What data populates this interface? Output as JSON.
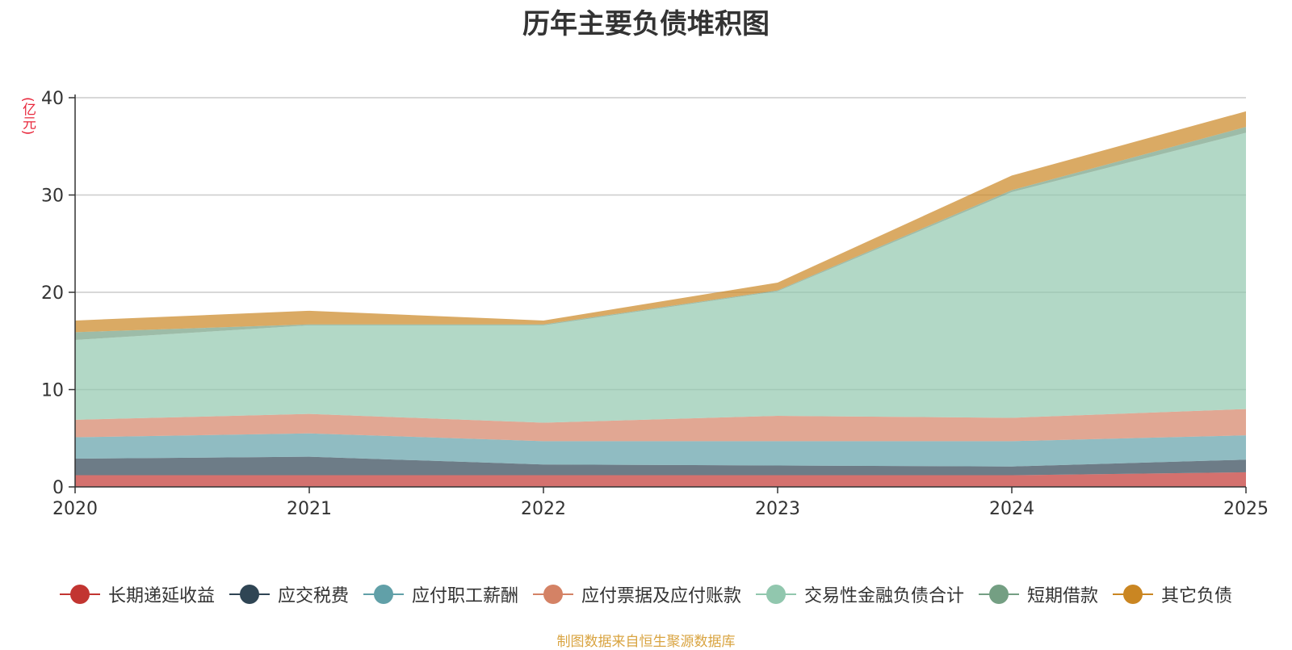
{
  "chart_data": {
    "type": "area",
    "stacked": true,
    "title": "历年主要负债堆积图",
    "unit": "(亿元)",
    "xlabel": "",
    "ylabel": "(亿元)",
    "x": [
      "2020",
      "2021",
      "2022",
      "2023",
      "2024",
      "2025"
    ],
    "ylim": [
      0,
      40
    ],
    "yticks": [
      0,
      10,
      20,
      30,
      40
    ],
    "grid": true,
    "legend_position": "bottom",
    "series": [
      {
        "name": "长期递延收益",
        "color": "#c23531",
        "values": [
          1.2,
          1.2,
          1.2,
          1.2,
          1.2,
          1.5
        ]
      },
      {
        "name": "应交税费",
        "color": "#2f4554",
        "values": [
          1.7,
          1.9,
          1.1,
          1.0,
          0.9,
          1.3
        ]
      },
      {
        "name": "应付职工薪酬",
        "color": "#61a0a8",
        "values": [
          2.2,
          2.4,
          2.4,
          2.5,
          2.6,
          2.5
        ]
      },
      {
        "name": "应付票据及应付账款",
        "color": "#d48265",
        "values": [
          1.8,
          2.0,
          1.9,
          2.6,
          2.4,
          2.7
        ]
      },
      {
        "name": "交易性金融负债合计",
        "color": "#91c7ae",
        "values": [
          8.2,
          9.1,
          10.0,
          12.8,
          23.2,
          28.4
        ]
      },
      {
        "name": "短期借款",
        "color": "#749f83",
        "values": [
          0.8,
          0.1,
          0.1,
          0.1,
          0.2,
          0.6
        ]
      },
      {
        "name": "其它负债",
        "color": "#ca8622",
        "values": [
          1.2,
          1.4,
          0.4,
          0.8,
          1.5,
          1.6
        ]
      }
    ]
  },
  "source_note": "制图数据来自恒生聚源数据库"
}
